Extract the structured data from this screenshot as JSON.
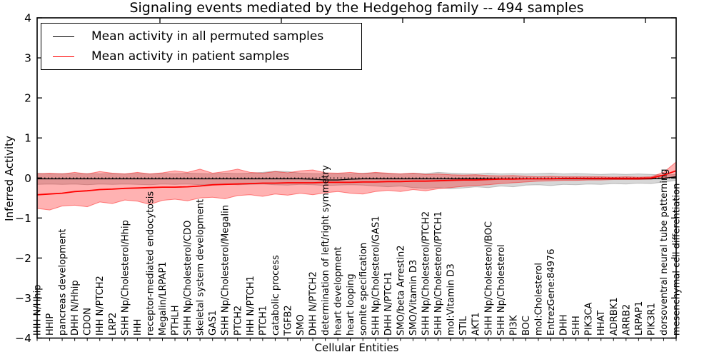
{
  "chart_data": {
    "type": "line",
    "title": "Signaling events mediated by the Hedgehog family -- 494 samples",
    "xlabel": "Cellular Entities",
    "ylabel": "Inferred Activity",
    "ylim": [
      -4,
      4
    ],
    "yticks": [
      -4,
      -3,
      -2,
      -1,
      0,
      1,
      2,
      3,
      4
    ],
    "grid": false,
    "legend_position": "upper left",
    "zero_line": {
      "style": "dotted",
      "color": "#000000",
      "y": 0
    },
    "categories": [
      "IHH N/Hhip",
      "HHIP",
      "pancreas development",
      "DHH N/Hhip",
      "CDON",
      "IHH N/PTCH2",
      "LRP2",
      "SHH Np/Cholesterol/Hhip",
      "IHH",
      "receptor-mediated endocytosis",
      "Megalin/LRPAP1",
      "PTHLH",
      "SHH Np/Cholesterol/CDO",
      "skeletal system development",
      "GAS1",
      "SHH Np/Cholesterol/Megalin",
      "PTCH2",
      "IHH N/PTCH1",
      "PTCH1",
      "catabolic process",
      "TGFB2",
      "SMO",
      "DHH N/PTCH2",
      "determination of left/right symmetry",
      "heart development",
      "heart looping",
      "somite specification",
      "SHH Np/Cholesterol/GAS1",
      "DHH N/PTCH1",
      "SMO/beta Arrestin2",
      "SMO/Vitamin D3",
      "SHH Np/Cholesterol/PTCH2",
      "SHH Np/Cholesterol/PTCH1",
      "mol:Vitamin D3",
      "STIL",
      "AKT1",
      "SHH Np/Cholesterol/BOC",
      "SHH Np/Cholesterol",
      "PI3K",
      "BOC",
      "mol:Cholesterol",
      "EntrezGene:84976",
      "DHH",
      "SHH",
      "PIK3CA",
      "HHAT",
      "ADRBK1",
      "ARRB2",
      "LRPAP1",
      "PIK3R1",
      "dorsoventral neural tube patterning",
      "mesenchymal cell differentiation"
    ],
    "series": [
      {
        "name": "Mean activity in all permuted samples",
        "color": "#000000",
        "values": [
          -0.02,
          -0.02,
          -0.02,
          -0.02,
          -0.02,
          -0.02,
          -0.02,
          -0.02,
          -0.02,
          -0.02,
          -0.02,
          -0.02,
          -0.02,
          -0.02,
          -0.02,
          -0.02,
          -0.02,
          -0.02,
          -0.02,
          -0.02,
          -0.02,
          -0.02,
          -0.03,
          -0.05,
          -0.05,
          -0.03,
          -0.02,
          -0.02,
          -0.02,
          -0.02,
          -0.02,
          -0.02,
          -0.02,
          -0.02,
          -0.02,
          -0.02,
          -0.02,
          -0.02,
          -0.02,
          -0.02,
          -0.02,
          -0.02,
          -0.02,
          -0.02,
          -0.02,
          -0.02,
          -0.02,
          -0.02,
          -0.02,
          -0.02,
          -0.01,
          0.03
        ],
        "band": {
          "fill": "rgba(130,130,130,0.32)",
          "edge": "rgba(130,130,130,0.45)",
          "upper": [
            0.12,
            0.1,
            0.11,
            0.1,
            0.11,
            0.1,
            0.11,
            0.1,
            0.11,
            0.1,
            0.11,
            0.1,
            0.12,
            0.11,
            0.1,
            0.12,
            0.11,
            0.12,
            0.14,
            0.17,
            0.16,
            0.12,
            0.11,
            0.1,
            0.11,
            0.1,
            0.12,
            0.13,
            0.11,
            0.1,
            0.12,
            0.11,
            0.14,
            0.12,
            0.11,
            0.1,
            0.12,
            0.1,
            0.11,
            0.1,
            0.11,
            0.12,
            0.1,
            0.11,
            0.1,
            0.09,
            0.1,
            0.09,
            0.1,
            0.09,
            0.07,
            0.09
          ],
          "lower": [
            -0.16,
            -0.15,
            -0.16,
            -0.15,
            -0.17,
            -0.15,
            -0.16,
            -0.15,
            -0.16,
            -0.17,
            -0.15,
            -0.16,
            -0.15,
            -0.17,
            -0.16,
            -0.15,
            -0.17,
            -0.16,
            -0.15,
            -0.17,
            -0.18,
            -0.16,
            -0.17,
            -0.19,
            -0.18,
            -0.17,
            -0.18,
            -0.2,
            -0.22,
            -0.2,
            -0.24,
            -0.26,
            -0.24,
            -0.27,
            -0.25,
            -0.22,
            -0.24,
            -0.2,
            -0.22,
            -0.18,
            -0.17,
            -0.19,
            -0.16,
            -0.17,
            -0.15,
            -0.16,
            -0.14,
            -0.15,
            -0.13,
            -0.14,
            -0.1,
            -0.06
          ]
        }
      },
      {
        "name": "Mean activity in patient samples",
        "color": "#ff0000",
        "values": [
          -0.42,
          -0.4,
          -0.38,
          -0.34,
          -0.32,
          -0.29,
          -0.28,
          -0.26,
          -0.25,
          -0.24,
          -0.23,
          -0.23,
          -0.22,
          -0.2,
          -0.17,
          -0.16,
          -0.15,
          -0.14,
          -0.13,
          -0.13,
          -0.12,
          -0.12,
          -0.12,
          -0.11,
          -0.11,
          -0.11,
          -0.1,
          -0.1,
          -0.09,
          -0.09,
          -0.08,
          -0.08,
          -0.07,
          -0.06,
          -0.05,
          -0.05,
          -0.04,
          -0.03,
          -0.03,
          -0.02,
          -0.02,
          -0.02,
          -0.01,
          -0.01,
          -0.01,
          -0.01,
          -0.01,
          -0.01,
          -0.01,
          0.0,
          0.07,
          0.18
        ],
        "band": {
          "fill": "rgba(255,0,0,0.30)",
          "edge": "rgba(255,0,0,0.45)",
          "upper": [
            0.1,
            0.12,
            0.1,
            0.14,
            0.1,
            0.16,
            0.12,
            0.1,
            0.14,
            0.1,
            0.13,
            0.18,
            0.14,
            0.22,
            0.12,
            0.16,
            0.22,
            0.14,
            0.12,
            0.16,
            0.13,
            0.18,
            0.2,
            0.13,
            0.12,
            0.14,
            0.11,
            0.14,
            0.12,
            0.1,
            0.12,
            0.09,
            0.1,
            0.08,
            0.07,
            0.08,
            0.06,
            0.05,
            0.06,
            0.04,
            0.03,
            0.04,
            0.03,
            0.03,
            0.03,
            0.03,
            0.02,
            0.03,
            0.02,
            0.03,
            0.14,
            0.4
          ],
          "lower": [
            -0.76,
            -0.8,
            -0.7,
            -0.68,
            -0.72,
            -0.6,
            -0.64,
            -0.55,
            -0.58,
            -0.66,
            -0.56,
            -0.53,
            -0.57,
            -0.5,
            -0.48,
            -0.52,
            -0.44,
            -0.42,
            -0.46,
            -0.4,
            -0.43,
            -0.38,
            -0.42,
            -0.37,
            -0.34,
            -0.38,
            -0.4,
            -0.34,
            -0.31,
            -0.34,
            -0.29,
            -0.32,
            -0.27,
            -0.24,
            -0.21,
            -0.19,
            -0.17,
            -0.14,
            -0.12,
            -0.1,
            -0.08,
            -0.07,
            -0.06,
            -0.06,
            -0.05,
            -0.05,
            -0.04,
            -0.04,
            -0.04,
            -0.03,
            0.01,
            0.02
          ]
        }
      }
    ]
  }
}
